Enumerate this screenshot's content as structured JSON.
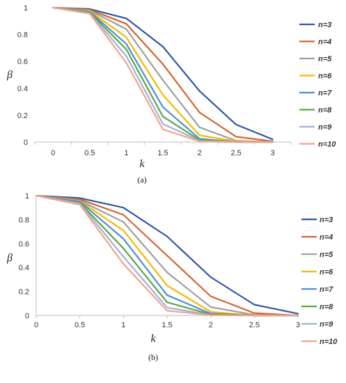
{
  "chart_data": [
    {
      "type": "line",
      "caption": "(a)",
      "xlabel": "k",
      "ylabel": "β",
      "xlim": [
        0,
        3
      ],
      "ylim": [
        0,
        1
      ],
      "x_categories": [
        "0",
        "0.5",
        "1",
        "1.5",
        "2",
        "2.5",
        "3"
      ],
      "yticks": [
        "0",
        "0.2",
        "0.4",
        "0.6",
        "0.8",
        "1"
      ],
      "grid": false,
      "legend": "right",
      "series": [
        {
          "name": "n=3",
          "color": "#2f55a4",
          "values": [
            1,
            0.99,
            0.92,
            0.71,
            0.38,
            0.13,
            0.02
          ]
        },
        {
          "name": "n=4",
          "color": "#d4622a",
          "values": [
            1,
            0.985,
            0.88,
            0.58,
            0.22,
            0.04,
            0.005
          ]
        },
        {
          "name": "n=5",
          "color": "#9e9e9e",
          "values": [
            1,
            0.98,
            0.84,
            0.46,
            0.11,
            0.01,
            0
          ]
        },
        {
          "name": "n=6",
          "color": "#f2b800",
          "values": [
            1,
            0.975,
            0.78,
            0.35,
            0.05,
            0.005,
            0
          ]
        },
        {
          "name": "n=7",
          "color": "#4a8fd1",
          "values": [
            1,
            0.97,
            0.73,
            0.26,
            0.025,
            0,
            0
          ]
        },
        {
          "name": "n=8",
          "color": "#5aa542",
          "values": [
            1,
            0.965,
            0.69,
            0.19,
            0.015,
            0,
            0
          ]
        },
        {
          "name": "n=9",
          "color": "#9db0dc",
          "values": [
            1,
            0.96,
            0.64,
            0.135,
            0.01,
            0,
            0
          ]
        },
        {
          "name": "n=10",
          "color": "#f3a187",
          "values": [
            1,
            0.955,
            0.59,
            0.095,
            0.005,
            0,
            0
          ]
        }
      ]
    },
    {
      "type": "line",
      "caption": "(b)",
      "xlabel": "k",
      "ylabel": "β",
      "xlim": [
        0,
        3
      ],
      "ylim": [
        0,
        1
      ],
      "xticks": [
        "0",
        "0.5",
        "1",
        "1.5",
        "2",
        "2.5",
        "3"
      ],
      "yticks": [
        "0",
        "0.2",
        "0.4",
        "0.6",
        "0.8",
        "1"
      ],
      "grid": false,
      "legend": "right",
      "series": [
        {
          "name": "n=3",
          "color": "#2f55a4",
          "x": [
            0,
            0.5,
            1,
            1.5,
            2,
            2.5,
            3
          ],
          "values": [
            1,
            0.98,
            0.9,
            0.66,
            0.32,
            0.09,
            0.015
          ]
        },
        {
          "name": "n=4",
          "color": "#d4622a",
          "x": [
            0,
            0.5,
            1,
            1.5,
            2,
            2.5,
            3
          ],
          "values": [
            1,
            0.97,
            0.84,
            0.5,
            0.16,
            0.02,
            0
          ]
        },
        {
          "name": "n=5",
          "color": "#9e9e9e",
          "x": [
            0,
            0.5,
            1,
            1.5,
            2,
            2.5,
            3
          ],
          "values": [
            1,
            0.96,
            0.78,
            0.36,
            0.07,
            0.005,
            0
          ]
        },
        {
          "name": "n=6",
          "color": "#f2b800",
          "x": [
            0,
            0.5,
            1,
            1.5,
            2,
            2.5,
            3
          ],
          "values": [
            1,
            0.955,
            0.71,
            0.25,
            0.03,
            0,
            0
          ]
        },
        {
          "name": "n=7",
          "color": "#4a8fd1",
          "x": [
            0,
            0.5,
            1,
            1.5,
            2,
            2.5,
            3
          ],
          "values": [
            1,
            0.95,
            0.64,
            0.17,
            0.015,
            0,
            0
          ]
        },
        {
          "name": "n=8",
          "color": "#5aa542",
          "x": [
            0,
            0.5,
            1,
            1.5,
            2,
            2.5,
            3
          ],
          "values": [
            1,
            0.94,
            0.56,
            0.11,
            0.008,
            0,
            0
          ]
        },
        {
          "name": "n=9",
          "color": "#9db0dc",
          "x": [
            0,
            0.5,
            1,
            1.5,
            2,
            2.5,
            3
          ],
          "values": [
            1,
            0.935,
            0.49,
            0.065,
            0.004,
            0,
            0
          ]
        },
        {
          "name": "n=10",
          "color": "#f3a187",
          "x": [
            0,
            0.5,
            1,
            1.5,
            2,
            2.5,
            3
          ],
          "values": [
            1,
            0.925,
            0.43,
            0.04,
            0.002,
            0,
            0
          ]
        }
      ]
    }
  ]
}
